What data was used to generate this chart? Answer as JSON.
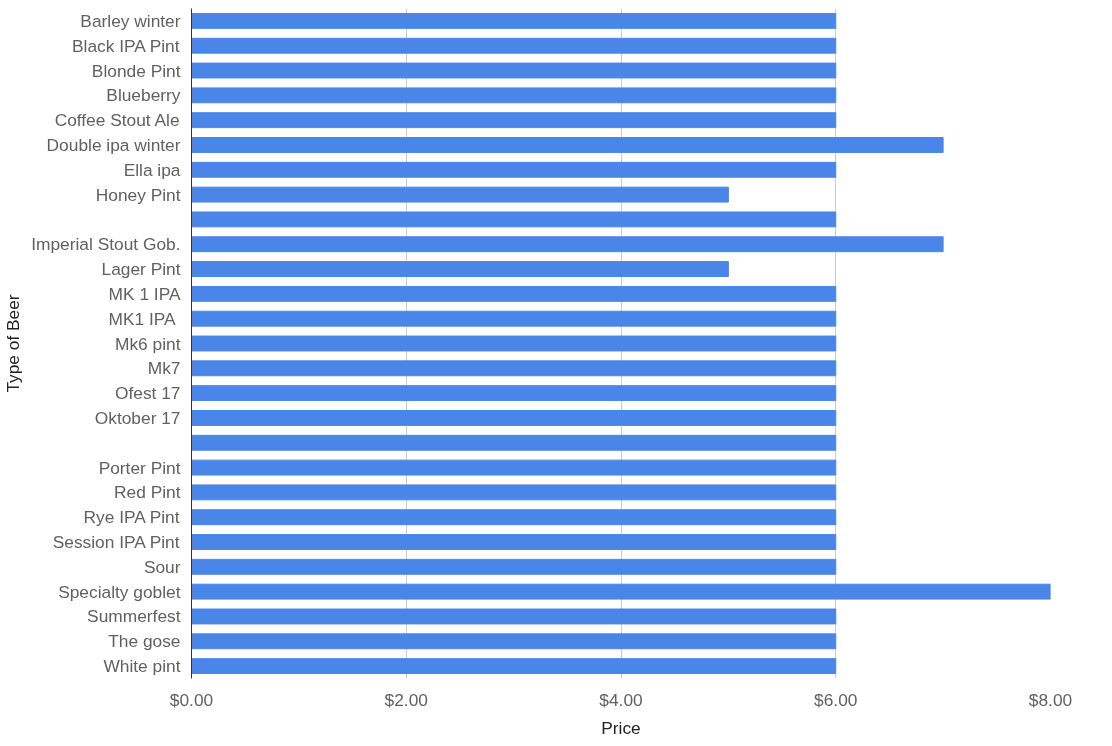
{
  "chart_data": {
    "type": "bar",
    "orientation": "horizontal",
    "xlabel": "Price",
    "ylabel": "Type of Beer",
    "categories": [
      "Barley winter",
      "Black IPA Pint",
      "Blonde Pint",
      "Blueberry",
      "Coffee Stout Ale",
      "Double ipa winter",
      "Ella ipa",
      "Honey Pint",
      null,
      "Imperial Stout Gob.",
      "Lager Pint",
      "MK 1 IPA",
      "MK1  IPA",
      "Mk6 pint",
      "Mk7",
      "Ofest 17",
      "Oktober 17",
      null,
      "Porter Pint",
      "Red Pint",
      "Rye IPA Pint",
      "Session IPA Pint",
      "Sour",
      "Specialty goblet",
      "Summerfest",
      "The gose",
      "White pint"
    ],
    "values": [
      6,
      6,
      6,
      6,
      6,
      7,
      6,
      5,
      6,
      7,
      5,
      6,
      6,
      6,
      6,
      6,
      6,
      6,
      6,
      6,
      6,
      6,
      6,
      8,
      6,
      6,
      6
    ],
    "color": "#4a86e8",
    "xlim": [
      0,
      8
    ],
    "xticks": [
      {
        "value": 0,
        "label": "$0.00"
      },
      {
        "value": 2,
        "label": "$2.00"
      },
      {
        "value": 4,
        "label": "$4.00"
      },
      {
        "value": 6,
        "label": "$6.00"
      },
      {
        "value": 8,
        "label": "$8.00"
      }
    ],
    "grid": "x"
  }
}
